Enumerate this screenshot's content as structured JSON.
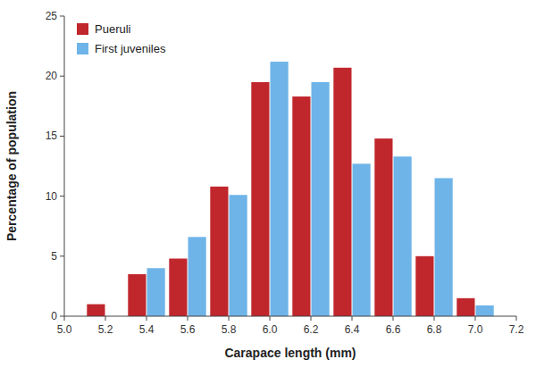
{
  "chart_data": {
    "type": "bar",
    "x": [
      5.2,
      5.4,
      5.6,
      5.8,
      6.0,
      6.2,
      6.4,
      6.6,
      6.8,
      7.0
    ],
    "series": [
      {
        "name": "Pueruli",
        "color": "#C0272D",
        "values": [
          1.0,
          3.5,
          4.8,
          10.8,
          19.5,
          18.3,
          20.7,
          14.8,
          5.0,
          1.5
        ]
      },
      {
        "name": "First juveniles",
        "color": "#6EB4E8",
        "values": [
          0.0,
          4.0,
          6.6,
          10.1,
          21.2,
          19.5,
          12.7,
          13.3,
          11.5,
          0.9
        ]
      }
    ],
    "x_label": "Carapace length (mm)",
    "y_label": "Percentage of population",
    "xlim": [
      5.0,
      7.2
    ],
    "xticks": [
      {
        "value": 5.0,
        "label": "5.0"
      },
      5.2,
      5.4,
      5.6,
      5.8,
      {
        "value": 6.0,
        "label": "6.0"
      },
      6.2,
      6.4,
      6.6,
      6.8,
      {
        "value": 7.0,
        "label": "7.0"
      },
      7.2
    ],
    "ylim": [
      0,
      25
    ],
    "yticks": [
      0,
      5,
      10,
      15,
      20,
      25
    ],
    "grid": false,
    "legend": "upper left"
  }
}
